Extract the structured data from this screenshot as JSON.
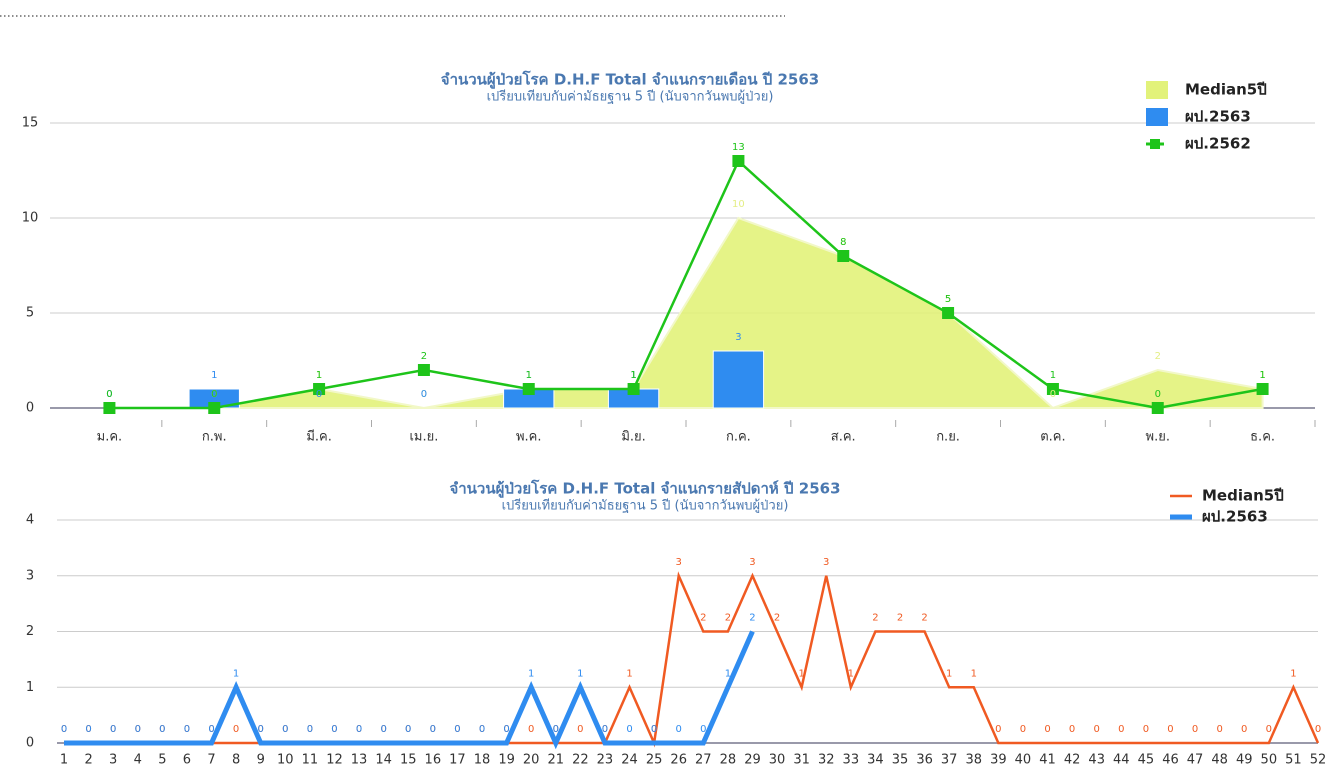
{
  "chart_data": [
    {
      "type": "combo",
      "title": "จำนวนผู้ป่วยโรค D.H.F Total จำแนกรายเดือน ปี 2563",
      "subtitle": "เปรียบเทียบกับค่ามัธยฐาน 5 ปี (นับจากวันพบผู้ป่วย)",
      "categories": [
        "ม.ค.",
        "ก.พ.",
        "มี.ค.",
        "เม.ย.",
        "พ.ค.",
        "มิ.ย.",
        "ก.ค.",
        "ส.ค.",
        "ก.ย.",
        "ต.ค.",
        "พ.ย.",
        "ธ.ค."
      ],
      "series": [
        {
          "name": "Median5ปี",
          "type": "area",
          "color": "#e2f27a",
          "values": [
            0,
            0,
            1,
            0,
            1,
            1,
            10,
            8,
            5,
            0,
            2,
            1
          ]
        },
        {
          "name": "ผป.2563",
          "type": "bar",
          "color": "#2f8cf0",
          "values": [
            0,
            1,
            0,
            0,
            1,
            1,
            3,
            null,
            null,
            null,
            null,
            null
          ]
        },
        {
          "name": "ผป.2562",
          "type": "line",
          "color": "#1ec41a",
          "values": [
            0,
            0,
            1,
            2,
            1,
            1,
            13,
            8,
            5,
            1,
            0,
            1
          ]
        }
      ],
      "ylim": [
        0,
        15
      ],
      "yticks": [
        0,
        5,
        10,
        15
      ],
      "grid": true,
      "legend": "top-right"
    },
    {
      "type": "line",
      "title": "จำนวนผู้ป่วยโรค D.H.F Total จำแนกรายสัปดาห์ ปี 2563",
      "subtitle": "เปรียบเทียบกับค่ามัธยฐาน 5 ปี (นับจากวันพบผู้ป่วย)",
      "x": [
        1,
        2,
        3,
        4,
        5,
        6,
        7,
        8,
        9,
        10,
        11,
        12,
        13,
        14,
        15,
        16,
        17,
        18,
        19,
        20,
        21,
        22,
        23,
        24,
        25,
        26,
        27,
        28,
        29,
        30,
        31,
        32,
        33,
        34,
        35,
        36,
        37,
        38,
        39,
        40,
        41,
        42,
        43,
        44,
        45,
        46,
        47,
        48,
        49,
        50,
        51,
        52
      ],
      "series": [
        {
          "name": "Median5ปี",
          "color": "#f05a22",
          "width": 2.5,
          "values": [
            0,
            0,
            0,
            0,
            0,
            0,
            0,
            0,
            0,
            0,
            0,
            0,
            0,
            0,
            0,
            0,
            0,
            0,
            0,
            0,
            0,
            0,
            0,
            1,
            0,
            3,
            2,
            2,
            3,
            2,
            1,
            3,
            1,
            2,
            2,
            2,
            1,
            1,
            0,
            0,
            0,
            0,
            0,
            0,
            0,
            0,
            0,
            0,
            0,
            0,
            1,
            0
          ]
        },
        {
          "name": "ผป.2563",
          "color": "#2f8cf0",
          "width": 5,
          "values": [
            0,
            0,
            0,
            0,
            0,
            0,
            0,
            1,
            0,
            0,
            0,
            0,
            0,
            0,
            0,
            0,
            0,
            0,
            0,
            1,
            0,
            1,
            0,
            0,
            0,
            0,
            0,
            1,
            2,
            null,
            null,
            null,
            null,
            null,
            null,
            null,
            null,
            null,
            null,
            null,
            null,
            null,
            null,
            null,
            null,
            null,
            null,
            null,
            null,
            null,
            null,
            null
          ]
        }
      ],
      "xlim": [
        1,
        52
      ],
      "ylim": [
        0,
        4
      ],
      "yticks": [
        0,
        1,
        2,
        3,
        4
      ],
      "grid": true,
      "legend": "top-right"
    }
  ]
}
